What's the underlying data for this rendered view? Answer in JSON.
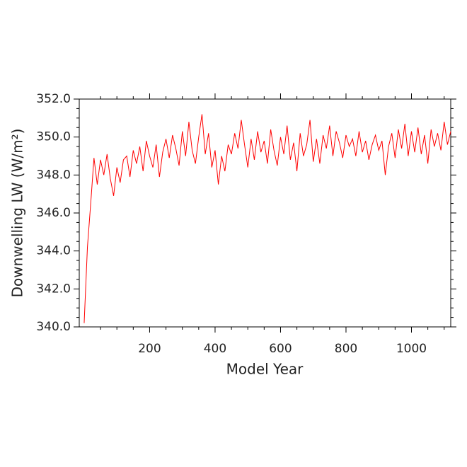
{
  "chart_data": {
    "type": "line",
    "xlabel": "Model Year",
    "ylabel": "Downwelling LW (W/m²)",
    "xlim": [
      -15,
      1120
    ],
    "ylim": [
      340,
      352
    ],
    "xticks": [
      200,
      400,
      600,
      800,
      1000
    ],
    "xminorticks": [
      50,
      100,
      150,
      250,
      300,
      350,
      450,
      500,
      550,
      650,
      700,
      750,
      850,
      900,
      950,
      1050,
      1100
    ],
    "yticks": [
      {
        "value": 340,
        "label": "340.0"
      },
      {
        "value": 342,
        "label": "342.0"
      },
      {
        "value": 344,
        "label": "344.0"
      },
      {
        "value": 346,
        "label": "346.0"
      },
      {
        "value": 348,
        "label": "348.0"
      },
      {
        "value": 350,
        "label": "350.0"
      },
      {
        "value": 352,
        "label": "352.0"
      }
    ],
    "yminorticks": [
      340.5,
      341,
      341.5,
      342.5,
      343,
      343.5,
      344.5,
      345,
      345.5,
      346.5,
      347,
      347.5,
      348.5,
      349,
      349.5,
      350.5,
      351,
      351.5
    ],
    "series": [
      {
        "color": "#ff0000",
        "x": [
          0,
          10,
          20,
          30,
          40,
          50,
          60,
          70,
          80,
          90,
          100,
          110,
          120,
          130,
          140,
          150,
          160,
          170,
          180,
          190,
          200,
          210,
          220,
          230,
          240,
          250,
          260,
          270,
          280,
          290,
          300,
          310,
          320,
          330,
          340,
          350,
          360,
          370,
          380,
          390,
          400,
          410,
          420,
          430,
          440,
          450,
          460,
          470,
          480,
          490,
          500,
          510,
          520,
          530,
          540,
          550,
          560,
          570,
          580,
          590,
          600,
          610,
          620,
          630,
          640,
          650,
          660,
          670,
          680,
          690,
          700,
          710,
          720,
          730,
          740,
          750,
          760,
          770,
          780,
          790,
          800,
          810,
          820,
          830,
          840,
          850,
          860,
          870,
          880,
          890,
          900,
          910,
          920,
          930,
          940,
          950,
          960,
          970,
          980,
          990,
          1000,
          1010,
          1020,
          1030,
          1040,
          1050,
          1060,
          1070,
          1080,
          1090,
          1100,
          1110,
          1120
        ],
        "values": [
          340.2,
          344.2,
          346.5,
          348.9,
          347.5,
          348.8,
          348.0,
          349.1,
          347.8,
          346.9,
          348.4,
          347.6,
          348.8,
          349.0,
          347.9,
          349.3,
          348.6,
          349.5,
          348.2,
          349.8,
          349.0,
          348.4,
          349.6,
          347.9,
          349.2,
          349.9,
          348.9,
          350.1,
          349.4,
          348.5,
          350.3,
          349.0,
          350.8,
          349.3,
          348.6,
          350.0,
          351.2,
          349.1,
          350.2,
          348.4,
          349.3,
          347.5,
          349.0,
          348.2,
          349.6,
          349.1,
          350.2,
          349.4,
          350.9,
          349.6,
          348.4,
          349.9,
          348.8,
          350.3,
          349.2,
          349.8,
          348.6,
          350.4,
          349.3,
          348.5,
          350.0,
          349.1,
          350.6,
          348.8,
          349.7,
          348.2,
          350.2,
          349.0,
          349.6,
          350.9,
          348.7,
          349.9,
          348.6,
          350.1,
          349.4,
          350.6,
          349.0,
          350.3,
          349.7,
          348.9,
          350.1,
          349.5,
          349.9,
          349.0,
          350.3,
          349.2,
          349.8,
          348.8,
          349.6,
          350.1,
          349.3,
          349.8,
          348.0,
          349.5,
          350.2,
          348.9,
          350.4,
          349.4,
          350.7,
          349.0,
          350.3,
          349.2,
          350.5,
          349.1,
          350.1,
          348.6,
          350.4,
          349.5,
          350.2,
          349.3,
          350.8,
          349.6,
          350.3
        ]
      }
    ]
  }
}
